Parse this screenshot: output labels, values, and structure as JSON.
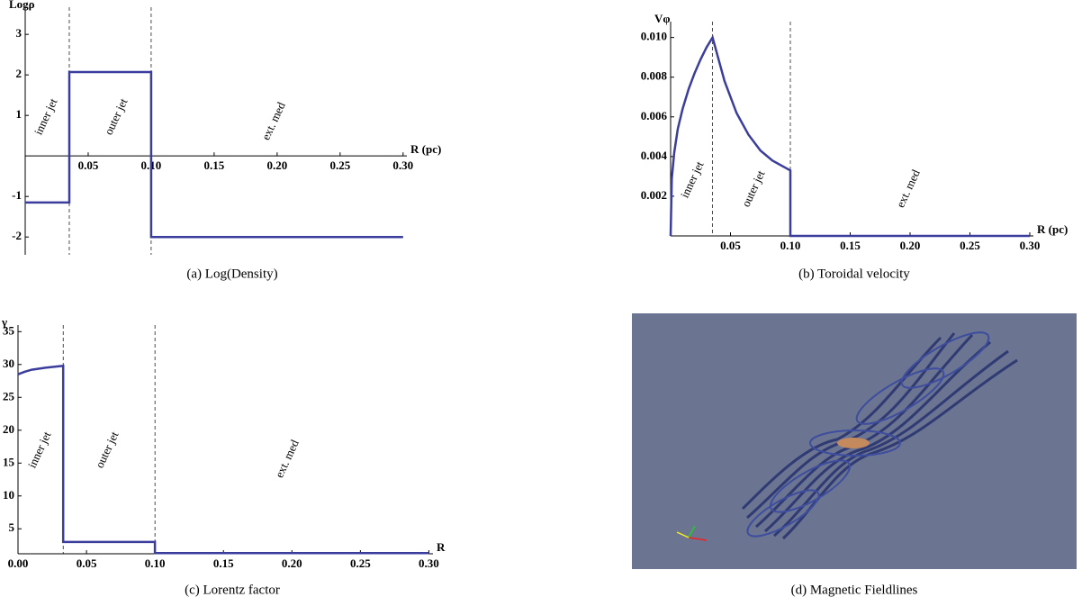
{
  "chart_data": [
    {
      "type": "line",
      "caption": "(a) Log(Density)",
      "y_label": "Logρ",
      "x_label": "R (pc)",
      "annotations": [
        "inner jet",
        "outer jet",
        "ext. med"
      ],
      "x": [
        0,
        0.035,
        0.035,
        0.1,
        0.1,
        0.3
      ],
      "values": [
        -1.15,
        -1.15,
        2.07,
        2.07,
        -2,
        -2
      ],
      "color": "#3b3d9c",
      "vlines": [
        0.035,
        0.1
      ],
      "xlim": [
        0,
        0.303
      ],
      "ylim": [
        -2.44,
        3.67
      ],
      "xticks": [
        0.05,
        {
          "value": 0.1,
          "label": "0.10"
        },
        0.15,
        {
          "value": 0.2,
          "label": "0.20"
        },
        0.25,
        {
          "value": 0.3,
          "label": "0.30"
        }
      ],
      "yticks": [
        -2,
        -1,
        1,
        2,
        3
      ]
    },
    {
      "type": "line",
      "caption": "(b) Toroidal velocity",
      "y_label": "Vφ",
      "x_label": "R (pc)",
      "annotations": [
        "inner jet",
        "outer jet",
        "ext. med"
      ],
      "x": [
        0,
        0.001,
        0.003,
        0.006,
        0.01,
        0.015,
        0.02,
        0.025,
        0.03,
        0.035,
        0.045,
        0.055,
        0.065,
        0.075,
        0.085,
        0.1,
        0.1,
        0.3
      ],
      "values": [
        0,
        0.0029,
        0.0042,
        0.0054,
        0.0064,
        0.0074,
        0.0082,
        0.0089,
        0.0095,
        0.01,
        0.0078,
        0.0062,
        0.0051,
        0.0043,
        0.0038,
        0.0033,
        0,
        0
      ],
      "color": "#3b3d9c",
      "vlines": [
        0.035,
        0.1
      ],
      "xlim": [
        0,
        0.303
      ],
      "ylim": [
        0,
        0.0108
      ],
      "xticks": [
        0.05,
        {
          "value": 0.1,
          "label": "0.10"
        },
        0.15,
        {
          "value": 0.2,
          "label": "0.20"
        },
        0.25,
        {
          "value": 0.3,
          "label": "0.30"
        }
      ],
      "yticks": [
        0.002,
        0.004,
        0.006,
        0.008,
        {
          "value": 0.01,
          "label": "0.010"
        }
      ]
    },
    {
      "type": "line",
      "caption": "(c) Lorentz factor",
      "y_label": "γ",
      "x_label": "R",
      "annotations": [
        "inner jet",
        "outer jet",
        "ext. med"
      ],
      "x": [
        0,
        0.005,
        0.01,
        0.02,
        0.033,
        0.033,
        0.1,
        0.1,
        0.3
      ],
      "values": [
        28.5,
        28.9,
        29.2,
        29.5,
        29.8,
        3,
        3,
        1.3,
        1.3
      ],
      "color": "#3b3d9c",
      "vlines": [
        0.033,
        0.1
      ],
      "xlim": [
        0,
        0.303
      ],
      "ylim": [
        1.2,
        36
      ],
      "xticks": [
        {
          "value": 0,
          "label": "0.00"
        },
        0.05,
        {
          "value": 0.1,
          "label": "0.10"
        },
        0.15,
        {
          "value": 0.2,
          "label": "0.20"
        },
        0.25,
        {
          "value": 0.3,
          "label": "0.30"
        }
      ],
      "yticks": [
        5,
        10,
        15,
        20,
        25,
        30,
        35
      ]
    }
  ],
  "image_panel": {
    "caption": "(d) Magnetic Fieldlines"
  }
}
